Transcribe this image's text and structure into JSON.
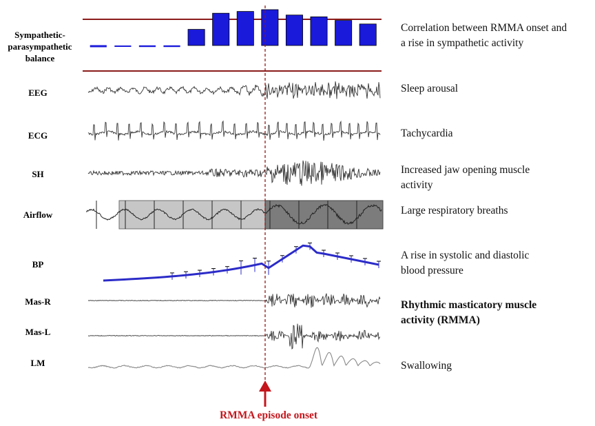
{
  "labels": {
    "balance_1": "Sympathetic-",
    "balance_2": "parasympathetic",
    "balance_3": "balance",
    "eeg": "EEG",
    "ecg": "ECG",
    "sh": "SH",
    "airflow": "Airflow",
    "bp": "BP",
    "mas_r": "Mas-R",
    "mas_l": "Mas-L",
    "lm": "LM"
  },
  "descriptions": {
    "correlation_1": "Correlation between RMMA onset and",
    "correlation_2": "a rise in sympathetic activity",
    "sleep_arousal": "Sleep arousal",
    "tachycardia": "Tachycardia",
    "jaw_1": "Increased jaw opening muscle",
    "jaw_2": "activity",
    "respiratory": "Large respiratory breaths",
    "bp_1": "A rise in systolic and diastolic",
    "bp_2": "blood pressure",
    "rmma_1": "Rhythmic masticatory muscle",
    "rmma_2": "activity (RMMA)",
    "swallowing": "Swallowing"
  },
  "onset_label": "RMMA episode onset",
  "balance_bars": [
    -0.1,
    -0.05,
    -0.08,
    -0.08,
    0.45,
    0.9,
    0.95,
    1.0,
    0.85,
    0.8,
    0.7,
    0.6
  ],
  "colors": {
    "bar": "#1a1adb",
    "trace": "#333333",
    "bp": "#2b2bc8",
    "border": "#8b1a1a",
    "onset": "#c4161c"
  }
}
